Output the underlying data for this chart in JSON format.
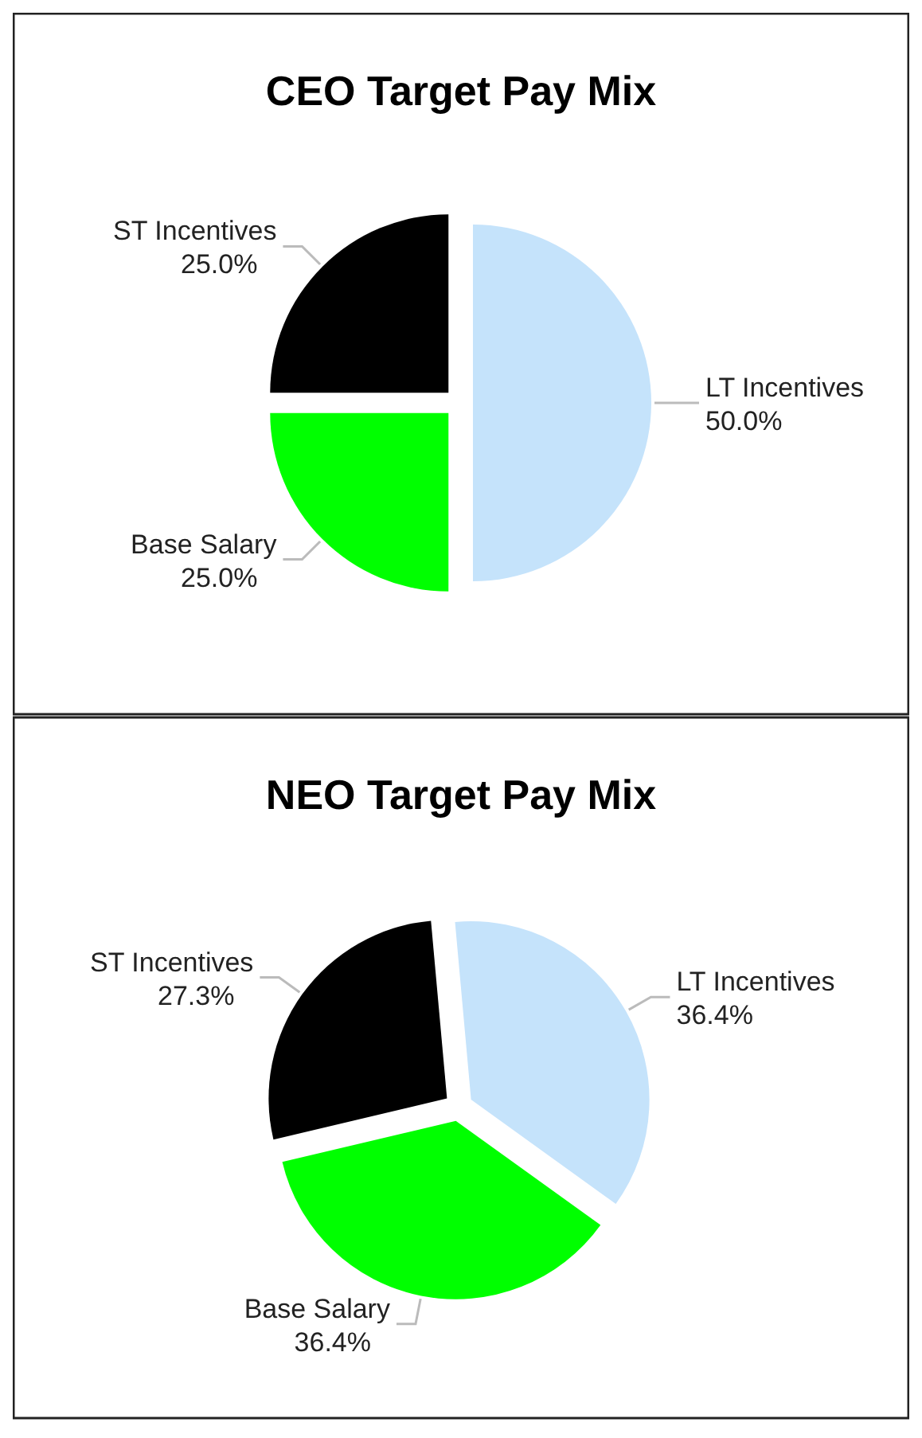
{
  "chart_data": [
    {
      "type": "pie",
      "title": "CEO Target Pay Mix",
      "categories": [
        "LT Incentives",
        "Base Salary",
        "ST Incentives"
      ],
      "values": [
        50.0,
        25.0,
        25.0
      ],
      "colors": [
        "#c5e3fb",
        "#00ff00",
        "#000000"
      ],
      "value_labels": [
        "50.0%",
        "25.0%",
        "25.0%"
      ]
    },
    {
      "type": "pie",
      "title": "NEO Target Pay Mix",
      "categories": [
        "LT Incentives",
        "Base Salary",
        "ST Incentives"
      ],
      "values": [
        36.4,
        36.4,
        27.3
      ],
      "colors": [
        "#c5e3fb",
        "#00ff00",
        "#000000"
      ],
      "value_labels": [
        "36.4%",
        "36.4%",
        "27.3%"
      ]
    }
  ]
}
